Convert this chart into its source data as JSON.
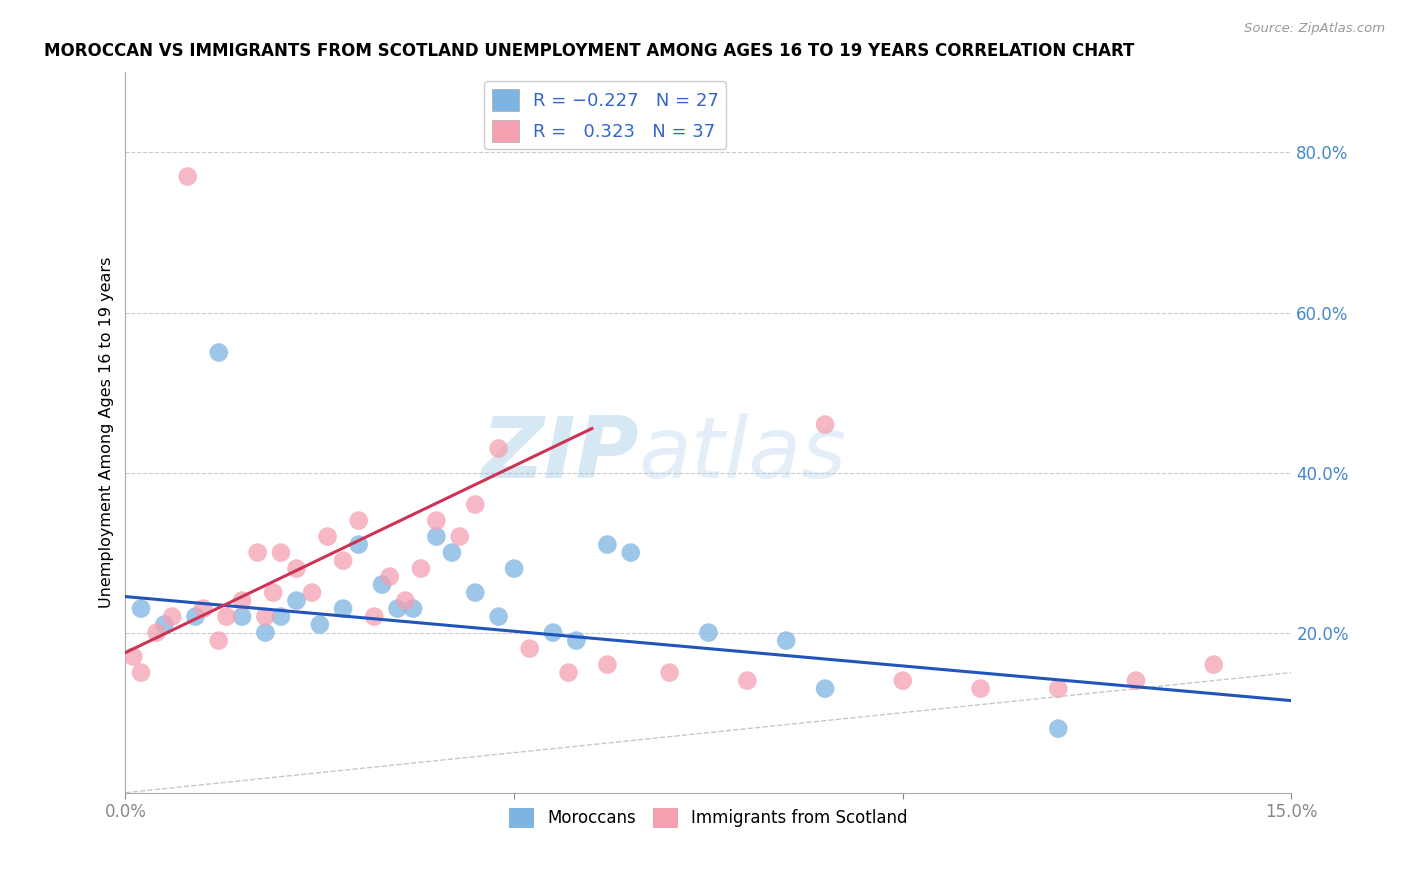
{
  "title": "MOROCCAN VS IMMIGRANTS FROM SCOTLAND UNEMPLOYMENT AMONG AGES 16 TO 19 YEARS CORRELATION CHART",
  "source": "Source: ZipAtlas.com",
  "ylabel": "Unemployment Among Ages 16 to 19 years",
  "xlim": [
    0.0,
    0.15
  ],
  "ylim": [
    0.0,
    0.9
  ],
  "xticks": [
    0.0,
    0.05,
    0.1,
    0.15
  ],
  "xticklabels": [
    "0.0%",
    "",
    "",
    "15.0%"
  ],
  "yticks_right": [
    0.2,
    0.4,
    0.6,
    0.8
  ],
  "ytick_labels_right": [
    "20.0%",
    "40.0%",
    "60.0%",
    "80.0%"
  ],
  "blue_color": "#7EB4E2",
  "pink_color": "#F4A0B0",
  "blue_line_color": "#2255BB",
  "pink_line_color": "#CC3355",
  "diagonal_color": "#C8C8C8",
  "watermark_zip": "ZIP",
  "watermark_atlas": "atlas",
  "blue_scatter_x": [
    0.002,
    0.005,
    0.009,
    0.012,
    0.015,
    0.018,
    0.02,
    0.022,
    0.025,
    0.028,
    0.03,
    0.033,
    0.035,
    0.037,
    0.04,
    0.042,
    0.045,
    0.048,
    0.05,
    0.055,
    0.058,
    0.062,
    0.065,
    0.075,
    0.085,
    0.09,
    0.12
  ],
  "blue_scatter_y": [
    0.23,
    0.21,
    0.22,
    0.55,
    0.22,
    0.2,
    0.22,
    0.24,
    0.21,
    0.23,
    0.31,
    0.26,
    0.23,
    0.23,
    0.32,
    0.3,
    0.25,
    0.22,
    0.28,
    0.2,
    0.19,
    0.31,
    0.3,
    0.2,
    0.19,
    0.13,
    0.08
  ],
  "pink_scatter_x": [
    0.001,
    0.002,
    0.004,
    0.006,
    0.008,
    0.01,
    0.012,
    0.013,
    0.015,
    0.017,
    0.018,
    0.019,
    0.02,
    0.022,
    0.024,
    0.026,
    0.028,
    0.03,
    0.032,
    0.034,
    0.036,
    0.038,
    0.04,
    0.043,
    0.045,
    0.048,
    0.052,
    0.057,
    0.062,
    0.07,
    0.08,
    0.09,
    0.1,
    0.11,
    0.12,
    0.13,
    0.14
  ],
  "pink_scatter_y": [
    0.17,
    0.15,
    0.2,
    0.22,
    0.77,
    0.23,
    0.19,
    0.22,
    0.24,
    0.3,
    0.22,
    0.25,
    0.3,
    0.28,
    0.25,
    0.32,
    0.29,
    0.34,
    0.22,
    0.27,
    0.24,
    0.28,
    0.34,
    0.32,
    0.36,
    0.43,
    0.18,
    0.15,
    0.16,
    0.15,
    0.14,
    0.46,
    0.14,
    0.13,
    0.13,
    0.14,
    0.16
  ],
  "blue_line_x0": 0.0,
  "blue_line_x1": 0.15,
  "blue_line_y0": 0.245,
  "blue_line_y1": 0.115,
  "pink_line_x0": 0.0,
  "pink_line_x1": 0.06,
  "pink_line_y0": 0.175,
  "pink_line_y1": 0.455
}
